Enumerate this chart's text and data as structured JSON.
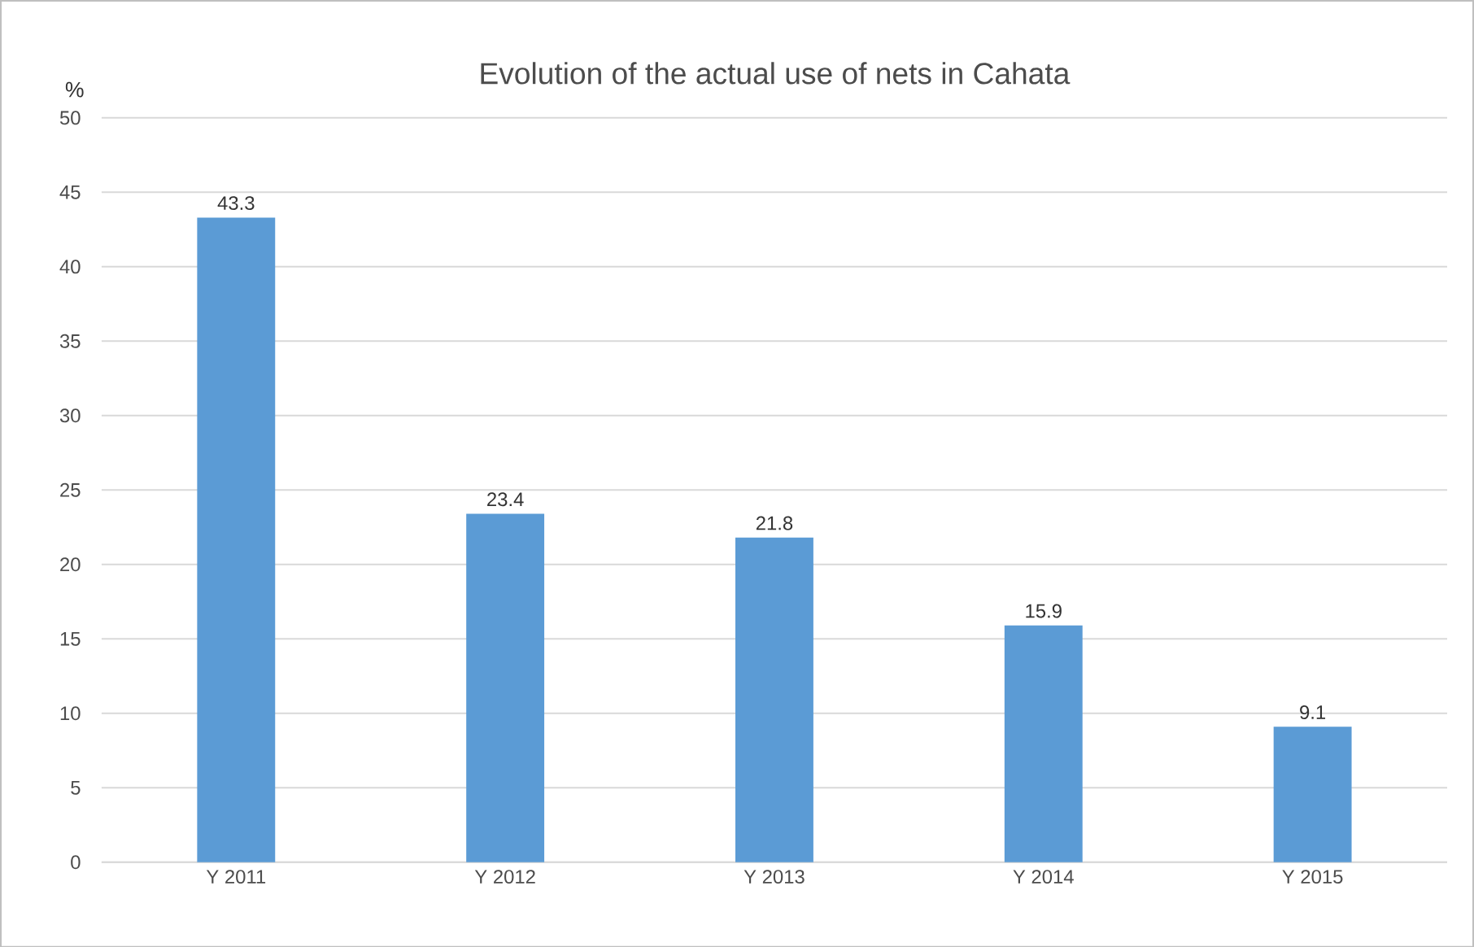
{
  "chart_data": {
    "type": "bar",
    "title": "Evolution of the actual use of nets in Cahata",
    "ylabel": "%",
    "categories": [
      "Y 2011",
      "Y 2012",
      "Y 2013",
      "Y 2014",
      "Y 2015"
    ],
    "values": [
      43.3,
      23.4,
      21.8,
      15.9,
      9.1
    ],
    "color": "#5b9bd5",
    "ylim": [
      0,
      50
    ],
    "yticks": [
      0,
      5,
      10,
      15,
      20,
      25,
      30,
      35,
      40,
      45,
      50
    ],
    "grid": "y",
    "data_labels": true
  }
}
